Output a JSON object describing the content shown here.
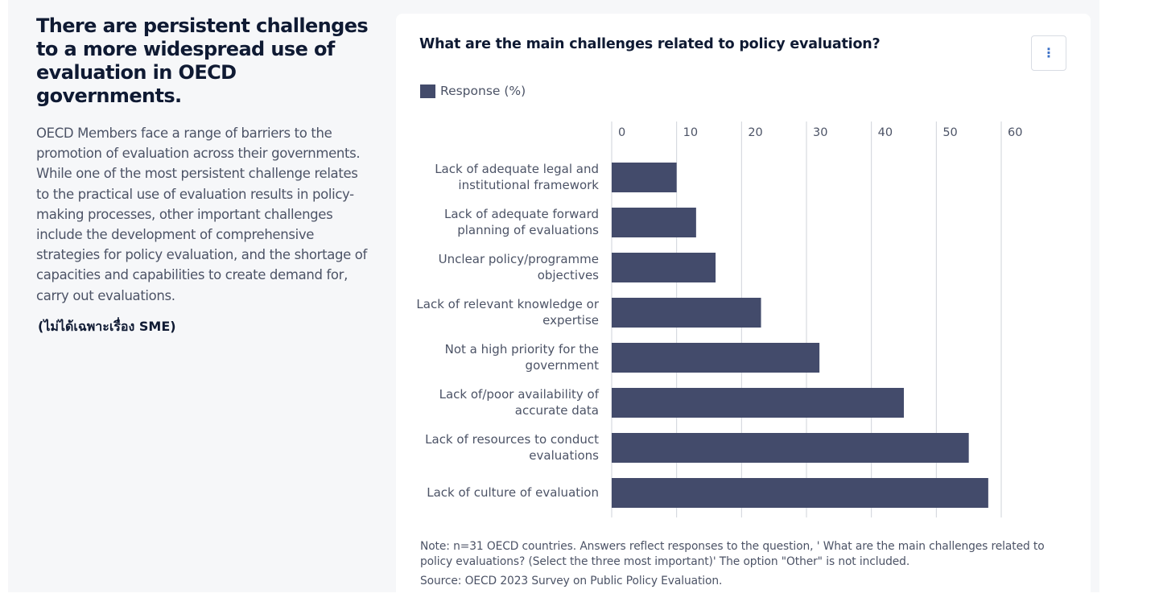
{
  "intro": {
    "headline": "There are persistent challenges to a more widespread use of evaluation in OECD governments.",
    "body": "OECD Members face a range of barriers to the promotion of evaluation across their governments. While one of the most persistent challenge relates to the practical use of evaluation results in policy-making processes, other important challenges include the development of comprehensive strategies for policy evaluation, and the shortage of capacities and capabilities to create demand for, carry out evaluations.",
    "thai_note": "(ไม่ได้เฉพาะเรื่อง SME)"
  },
  "card": {
    "menu_icon": "kebab-menu-icon",
    "note": "Note: n=31 OECD countries. Answers reflect responses to the question, ' What are the main challenges related to policy evaluations? (Select the three most important)' The option \"Other\" is not included.",
    "source": "Source: OECD 2023 Survey on Public Policy Evaluation."
  },
  "colors": {
    "bar": "#434b6b",
    "grid": "#cfd3da",
    "text": "#4c5366",
    "title": "#0f1a33"
  },
  "chart_data": {
    "type": "bar",
    "orientation": "horizontal",
    "title": "What are the main challenges related to policy evaluation?",
    "xlabel": "",
    "ylabel": "",
    "xlim": [
      0,
      60
    ],
    "ticks": [
      0,
      10,
      20,
      30,
      40,
      50,
      60
    ],
    "tick_labels": [
      "0",
      "10",
      "20",
      "30",
      "40",
      "50",
      "60"
    ],
    "axis_position": "top",
    "grid": true,
    "legend_position": "top-left",
    "categories": [
      [
        "Lack of adequate legal and",
        "institutional framework"
      ],
      [
        "Lack of adequate forward",
        "planning of evaluations"
      ],
      [
        "Unclear policy/programme",
        "objectives"
      ],
      [
        "Lack of relevant knowledge or",
        "expertise"
      ],
      [
        "Not a high priority for the",
        "government"
      ],
      [
        "Lack of/poor availability of",
        "accurate data"
      ],
      [
        "Lack of resources to conduct",
        "evaluations"
      ],
      [
        "Lack of culture of evaluation"
      ]
    ],
    "series": [
      {
        "name": "Response (%)",
        "values": [
          10,
          13,
          16,
          23,
          32,
          45,
          55,
          58
        ]
      }
    ]
  }
}
